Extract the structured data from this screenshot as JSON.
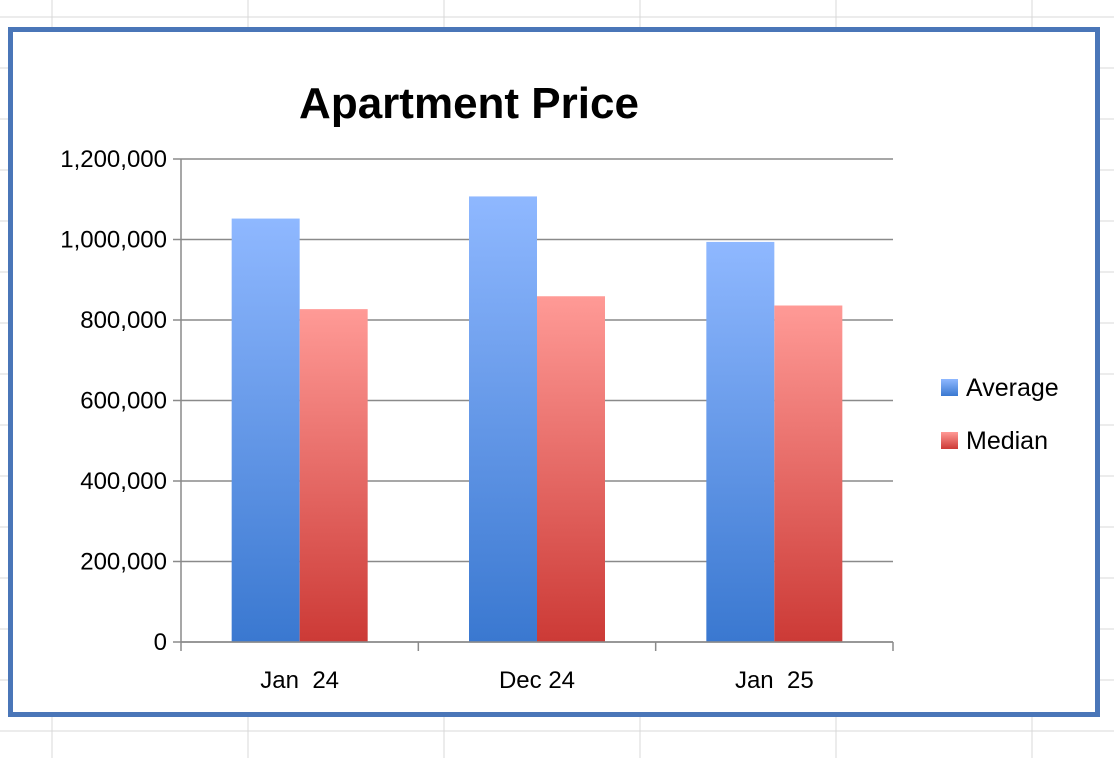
{
  "chart_data": {
    "type": "bar",
    "title": "Apartment Price",
    "xlabel": "",
    "ylabel": "",
    "categories": [
      "Jan  24",
      "Dec 24",
      "Jan  25"
    ],
    "series": [
      {
        "name": "Average",
        "values": [
          1052000,
          1107000,
          994000
        ],
        "color": "#6f9fe8"
      },
      {
        "name": "Median",
        "values": [
          827000,
          859000,
          836000
        ],
        "color": "#e86868"
      }
    ],
    "ylim": [
      0,
      1200000
    ],
    "yticks": [
      0,
      200000,
      400000,
      600000,
      800000,
      1000000,
      1200000
    ],
    "ytick_labels": [
      "0",
      "200,000",
      "400,000",
      "600,000",
      "800,000",
      "1,000,000",
      "1,200,000"
    ],
    "grid": true,
    "legend_position": "right"
  }
}
